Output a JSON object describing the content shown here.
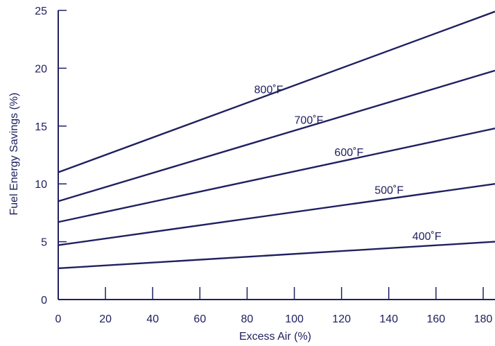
{
  "chart_data": {
    "type": "line",
    "title": "",
    "xlabel": "Excess Air (%)",
    "ylabel": "Fuel Energy Savings (%)",
    "xlim": [
      0,
      185
    ],
    "ylim": [
      0,
      25
    ],
    "xticks": [
      0,
      20,
      40,
      60,
      80,
      100,
      120,
      140,
      160,
      180
    ],
    "yticks": [
      0,
      5,
      10,
      15,
      20,
      25
    ],
    "grid": false,
    "legend": "none",
    "colors": {
      "line": "#1f2060",
      "axis": "#1f2060"
    },
    "series": [
      {
        "name": "400˚F",
        "x": [
          0,
          185
        ],
        "values": [
          2.7,
          5.0
        ],
        "label_at": 150
      },
      {
        "name": "500˚F",
        "x": [
          0,
          185
        ],
        "values": [
          4.7,
          10.0
        ],
        "label_at": 134
      },
      {
        "name": "600˚F",
        "x": [
          0,
          185
        ],
        "values": [
          6.7,
          14.8
        ],
        "label_at": 117
      },
      {
        "name": "700˚F",
        "x": [
          0,
          185
        ],
        "values": [
          8.5,
          19.8
        ],
        "label_at": 100
      },
      {
        "name": "800˚F",
        "x": [
          0,
          185
        ],
        "values": [
          11.0,
          24.9
        ],
        "label_at": 83
      }
    ]
  }
}
